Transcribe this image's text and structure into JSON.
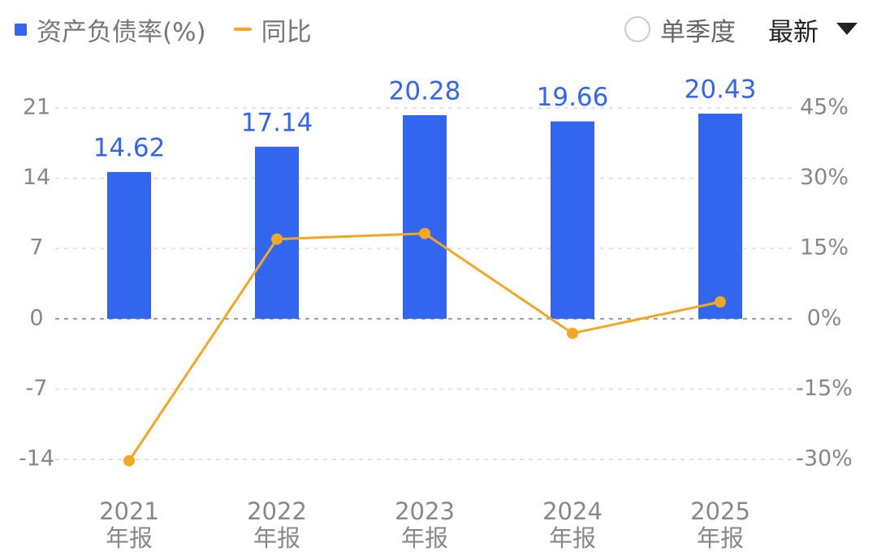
{
  "chart_data": {
    "type": "bar-line",
    "categories": [
      "2021\n年报",
      "2022\n年报",
      "2023\n年报",
      "2024\n年报",
      "2025\n年报"
    ],
    "series": [
      {
        "name": "资产负债率(%)",
        "color": "#3366ee",
        "type": "bar",
        "values": [
          14.62,
          17.14,
          20.28,
          19.66,
          20.43
        ]
      },
      {
        "name": "同比",
        "color": "#f5a623",
        "type": "line",
        "axis": "y2",
        "values": [
          -30.3,
          17.0,
          18.2,
          -3.1,
          3.6
        ]
      }
    ],
    "ylim": [
      -14,
      21
    ],
    "yticks": [
      -14,
      -7,
      0,
      7,
      14,
      21
    ],
    "y2lim": [
      -30,
      45
    ],
    "y2ticks": [
      {
        "value": -30,
        "label": "-30%"
      },
      {
        "value": -15,
        "label": "-15%"
      },
      {
        "value": 0,
        "label": "0%"
      },
      {
        "value": 15,
        "label": "15%"
      },
      {
        "value": 30,
        "label": "30%"
      },
      {
        "value": 45,
        "label": "45%"
      }
    ],
    "grid": true
  },
  "controls": {
    "period": "单季度",
    "sort": "最新"
  }
}
